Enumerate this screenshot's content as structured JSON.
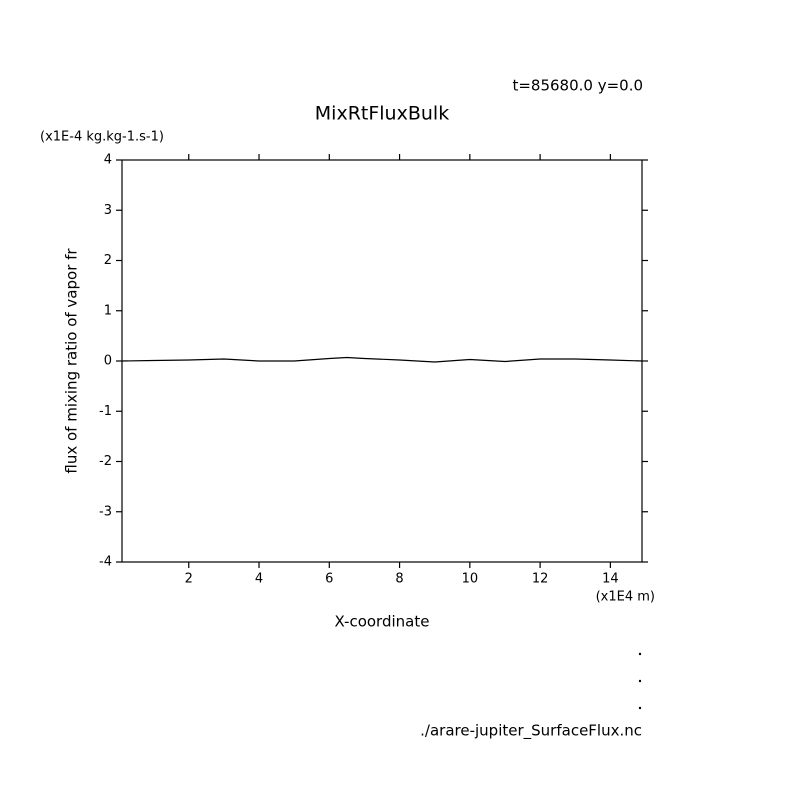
{
  "chart_data": {
    "type": "line",
    "title": "MixRtFluxBulk",
    "subtitle": "t=85680.0 y=0.0",
    "y_unit": "(x1E-4 kg.kg-1.s-1)",
    "x_unit": "(x1E4 m)",
    "xlabel": "X-coordinate",
    "ylabel": "flux of mixing ratio of vapor fr",
    "footer": "./arare-jupiter_SurfaceFlux.nc",
    "x": [
      0.1,
      1,
      2,
      3,
      4,
      5,
      6,
      6.5,
      7,
      8,
      9,
      10,
      11,
      12,
      13,
      14,
      14.9
    ],
    "series": [
      {
        "color": "#000000",
        "values": [
          0.0,
          0.01,
          0.02,
          0.04,
          0.0,
          0.0,
          0.05,
          0.07,
          0.05,
          0.02,
          -0.02,
          0.03,
          -0.01,
          0.04,
          0.04,
          0.02,
          0.0
        ]
      }
    ],
    "xlim": [
      0.1,
      14.9
    ],
    "xticks": [
      2,
      4,
      6,
      8,
      10,
      12,
      14
    ],
    "ylim": [
      -4,
      4
    ],
    "yticks": [
      -4,
      -3,
      -2,
      -1,
      0,
      1,
      2,
      3,
      4
    ]
  }
}
